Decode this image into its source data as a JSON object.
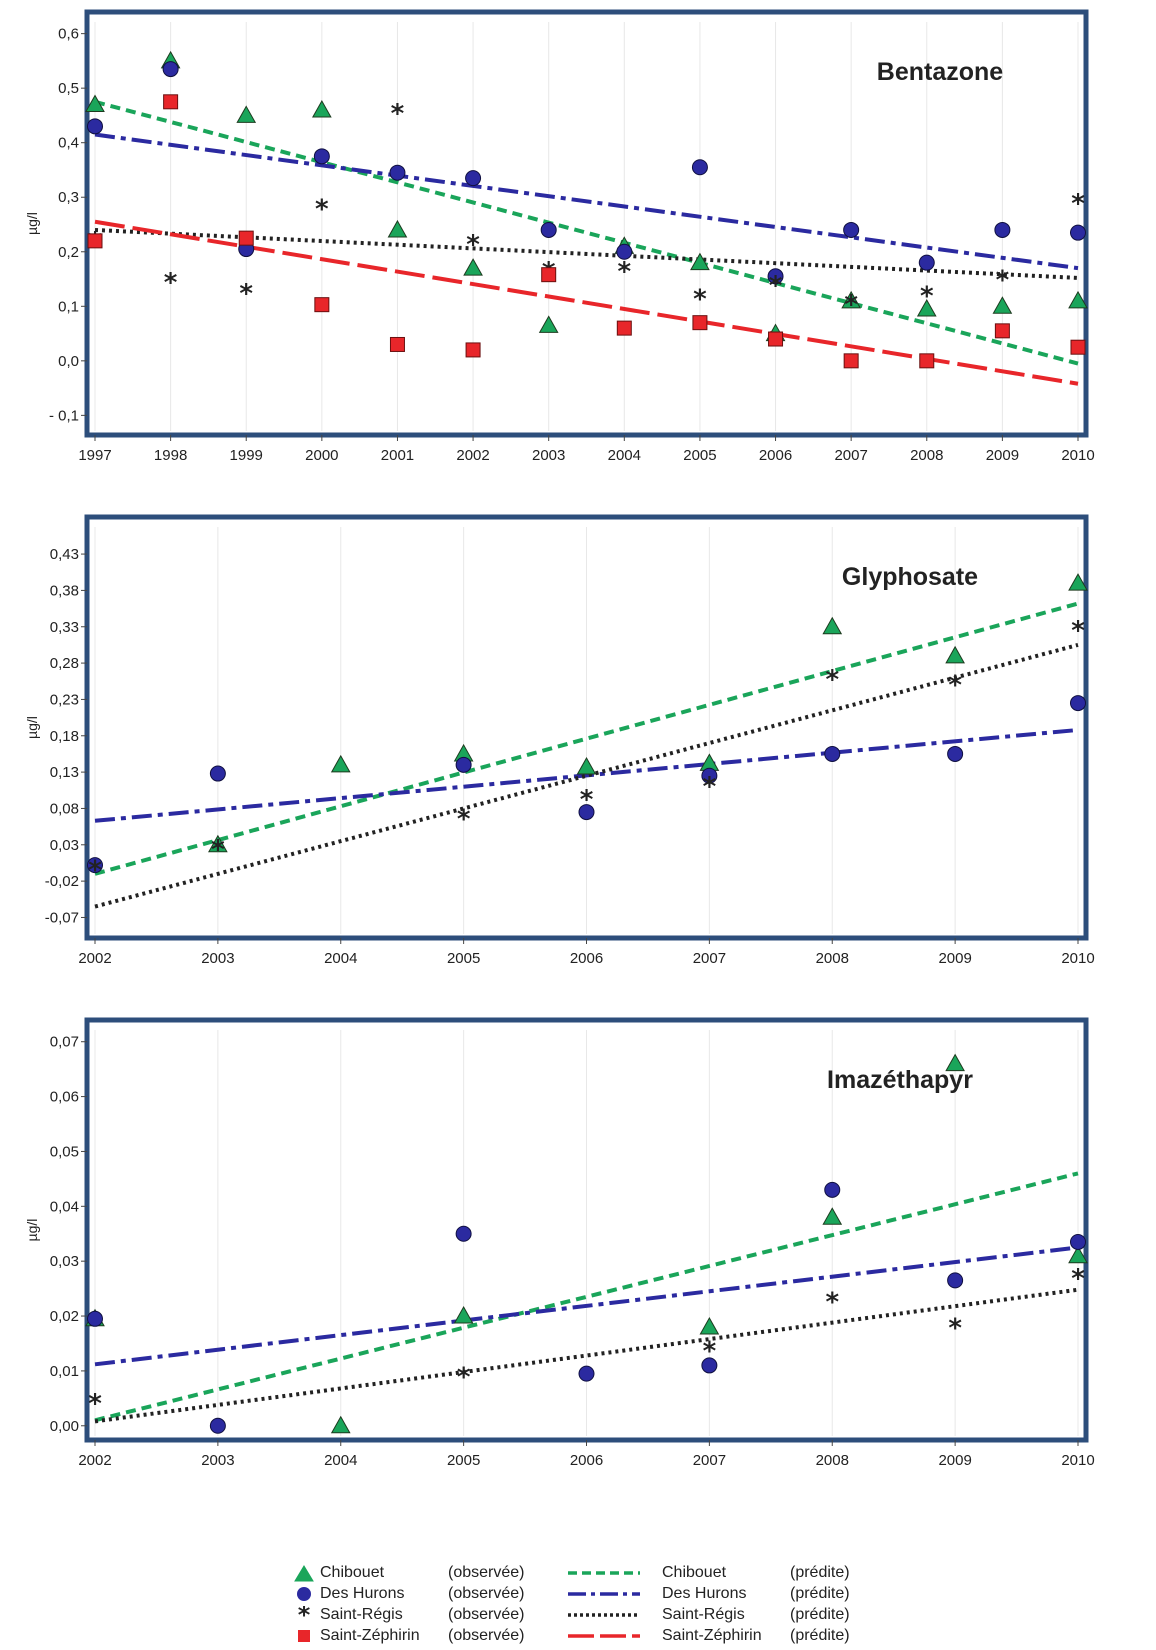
{
  "series_styles": [
    {
      "key": "chibouet",
      "color": "#1aa55a",
      "marker": "triangle",
      "line": "dash"
    },
    {
      "key": "hurons",
      "color": "#2b2aa0",
      "marker": "circle",
      "line": "dashdot"
    },
    {
      "key": "regis",
      "color": "#222222",
      "marker": "asterisk",
      "line": "dot"
    },
    {
      "key": "zephirin",
      "color": "#e8262a",
      "marker": "square",
      "line": "longdash"
    }
  ],
  "legend": {
    "observed": [
      {
        "key": "chibouet",
        "name": "Chibouet",
        "note": "(observée)"
      },
      {
        "key": "hurons",
        "name": "Des Hurons",
        "note": "(observée)"
      },
      {
        "key": "regis",
        "name": "Saint-Régis",
        "note": "(observée)"
      },
      {
        "key": "zephirin",
        "name": "Saint-Zéphirin",
        "note": "(observée)"
      }
    ],
    "predicted": [
      {
        "key": "chibouet",
        "name": "Chibouet",
        "note": "(prédite)"
      },
      {
        "key": "hurons",
        "name": "Des Hurons",
        "note": "(prédite)"
      },
      {
        "key": "regis",
        "name": "Saint-Régis",
        "note": "(prédite)"
      },
      {
        "key": "zephirin",
        "name": "Saint-Zéphirin",
        "note": "(prédite)"
      }
    ]
  },
  "chart_data": [
    {
      "type": "scatter",
      "title": "Bentazone",
      "ylabel": "µg/l",
      "xlim": [
        1997,
        2010
      ],
      "ylim": [
        -0.125,
        0.625
      ],
      "xticks": [
        "1997",
        "1998",
        "1999",
        "2000",
        "2001",
        "2002",
        "2003",
        "2004",
        "2005",
        "2006",
        "2007",
        "2008",
        "2009",
        "2010"
      ],
      "yticks": [
        {
          "v": 0.6,
          "label": "0,6"
        },
        {
          "v": 0.5,
          "label": "0,5"
        },
        {
          "v": 0.4,
          "label": "0,4"
        },
        {
          "v": 0.3,
          "label": "0,3"
        },
        {
          "v": 0.2,
          "label": "0,2"
        },
        {
          "v": 0.1,
          "label": "0,1"
        },
        {
          "v": 0.0,
          "label": "0,0"
        },
        {
          "v": -0.1,
          "label": "- 0,1"
        }
      ],
      "observed": {
        "chibouet": [
          [
            1997,
            0.47
          ],
          [
            1998,
            0.55
          ],
          [
            1999,
            0.45
          ],
          [
            2000,
            0.46
          ],
          [
            2001,
            0.24
          ],
          [
            2002,
            0.17
          ],
          [
            2003,
            0.065
          ],
          [
            2004,
            0.21
          ],
          [
            2005,
            0.18
          ],
          [
            2006,
            0.05
          ],
          [
            2007,
            0.11
          ],
          [
            2008,
            0.095
          ],
          [
            2009,
            0.1
          ],
          [
            2010,
            0.11
          ]
        ],
        "hurons": [
          [
            1997,
            0.43
          ],
          [
            1998,
            0.535
          ],
          [
            1999,
            0.205
          ],
          [
            2000,
            0.375
          ],
          [
            2001,
            0.345
          ],
          [
            2002,
            0.335
          ],
          [
            2003,
            0.24
          ],
          [
            2004,
            0.2
          ],
          [
            2005,
            0.355
          ],
          [
            2006,
            0.155
          ],
          [
            2007,
            0.24
          ],
          [
            2008,
            0.18
          ],
          [
            2009,
            0.24
          ],
          [
            2010,
            0.235
          ]
        ],
        "regis": [
          [
            1997,
            0.225
          ],
          [
            1998,
            0.15
          ],
          [
            1999,
            0.13
          ],
          [
            2000,
            0.285
          ],
          [
            2001,
            0.46
          ],
          [
            2002,
            0.22
          ],
          [
            2003,
            0.17
          ],
          [
            2004,
            0.17
          ],
          [
            2005,
            0.12
          ],
          [
            2006,
            0.145
          ],
          [
            2007,
            0.11
          ],
          [
            2008,
            0.125
          ],
          [
            2009,
            0.155
          ],
          [
            2010,
            0.295
          ]
        ],
        "zephirin": [
          [
            1997,
            0.22
          ],
          [
            1998,
            0.475
          ],
          [
            1999,
            0.225
          ],
          [
            2000,
            0.103
          ],
          [
            2001,
            0.03
          ],
          [
            2002,
            0.02
          ],
          [
            2003,
            0.158
          ],
          [
            2004,
            0.06
          ],
          [
            2005,
            0.07
          ],
          [
            2006,
            0.04
          ],
          [
            2007,
            0.0
          ],
          [
            2008,
            0.0
          ],
          [
            2009,
            0.055
          ],
          [
            2010,
            0.025
          ]
        ]
      },
      "predicted": {
        "chibouet": [
          [
            1997,
            0.475
          ],
          [
            2010,
            -0.005
          ]
        ],
        "hurons": [
          [
            1997,
            0.415
          ],
          [
            2010,
            0.17
          ]
        ],
        "regis": [
          [
            1997,
            0.24
          ],
          [
            2010,
            0.152
          ]
        ],
        "zephirin": [
          [
            1997,
            0.255
          ],
          [
            2010,
            -0.042
          ]
        ]
      }
    },
    {
      "type": "scatter",
      "title": "Glyphosate",
      "ylabel": "µg/l",
      "xlim": [
        2002,
        2010
      ],
      "ylim": [
        -0.09,
        0.47
      ],
      "xticks": [
        "2002",
        "2003",
        "2004",
        "2005",
        "2006",
        "2007",
        "2008",
        "2009",
        "2010"
      ],
      "yticks": [
        {
          "v": 0.43,
          "label": "0,43"
        },
        {
          "v": 0.38,
          "label": "0,38"
        },
        {
          "v": 0.33,
          "label": "0,33"
        },
        {
          "v": 0.28,
          "label": "0,28"
        },
        {
          "v": 0.23,
          "label": "0,23"
        },
        {
          "v": 0.18,
          "label": "0,18"
        },
        {
          "v": 0.13,
          "label": "0,13"
        },
        {
          "v": 0.08,
          "label": "0,08"
        },
        {
          "v": 0.03,
          "label": "0,03"
        },
        {
          "v": -0.02,
          "label": "-0,02"
        },
        {
          "v": -0.07,
          "label": "-0,07"
        }
      ],
      "observed": {
        "chibouet": [
          [
            2003,
            0.03
          ],
          [
            2004,
            0.14
          ],
          [
            2005,
            0.155
          ],
          [
            2006,
            0.137
          ],
          [
            2007,
            0.142
          ],
          [
            2008,
            0.33
          ],
          [
            2009,
            0.29
          ],
          [
            2010,
            0.39
          ]
        ],
        "hurons": [
          [
            2002,
            0.002
          ],
          [
            2003,
            0.128
          ],
          [
            2005,
            0.14
          ],
          [
            2006,
            0.075
          ],
          [
            2007,
            0.125
          ],
          [
            2008,
            0.155
          ],
          [
            2009,
            0.155
          ],
          [
            2010,
            0.225
          ]
        ],
        "regis": [
          [
            2002,
            0.0
          ],
          [
            2003,
            0.028
          ],
          [
            2005,
            0.07
          ],
          [
            2006,
            0.097
          ],
          [
            2007,
            0.115
          ],
          [
            2008,
            0.262
          ],
          [
            2009,
            0.255
          ],
          [
            2010,
            0.33
          ]
        ]
      },
      "predicted": {
        "chibouet": [
          [
            2002,
            -0.01
          ],
          [
            2010,
            0.362
          ]
        ],
        "hurons": [
          [
            2002,
            0.063
          ],
          [
            2010,
            0.188
          ]
        ],
        "regis": [
          [
            2002,
            -0.055
          ],
          [
            2010,
            0.305
          ]
        ]
      }
    },
    {
      "type": "scatter",
      "title": "Imazéthapyr",
      "ylabel": "µg/l",
      "xlim": [
        2002,
        2010
      ],
      "ylim": [
        -0.0015,
        0.0725
      ],
      "xticks": [
        "2002",
        "2003",
        "2004",
        "2005",
        "2006",
        "2007",
        "2008",
        "2009",
        "2010"
      ],
      "yticks": [
        {
          "v": 0.07,
          "label": "0,07"
        },
        {
          "v": 0.06,
          "label": "0,06"
        },
        {
          "v": 0.05,
          "label": "0,05"
        },
        {
          "v": 0.04,
          "label": "0,04"
        },
        {
          "v": 0.03,
          "label": "0,03"
        },
        {
          "v": 0.02,
          "label": "0,02"
        },
        {
          "v": 0.01,
          "label": "0,01"
        },
        {
          "v": 0.0,
          "label": "0,00"
        }
      ],
      "observed": {
        "chibouet": [
          [
            2002,
            0.0195
          ],
          [
            2004,
            0.0
          ],
          [
            2005,
            0.02
          ],
          [
            2007,
            0.018
          ],
          [
            2008,
            0.038
          ],
          [
            2009,
            0.066
          ],
          [
            2010,
            0.031
          ]
        ],
        "hurons": [
          [
            2002,
            0.0195
          ],
          [
            2003,
            0.0
          ],
          [
            2005,
            0.035
          ],
          [
            2006,
            0.0095
          ],
          [
            2007,
            0.011
          ],
          [
            2008,
            0.043
          ],
          [
            2009,
            0.0265
          ],
          [
            2010,
            0.0335
          ]
        ],
        "regis": [
          [
            2002,
            0.0047
          ],
          [
            2005,
            0.0095
          ],
          [
            2007,
            0.0143
          ],
          [
            2008,
            0.0232
          ],
          [
            2009,
            0.0185
          ],
          [
            2010,
            0.0275
          ]
        ]
      },
      "predicted": {
        "chibouet": [
          [
            2002,
            0.001
          ],
          [
            2010,
            0.046
          ]
        ],
        "hurons": [
          [
            2002,
            0.0112
          ],
          [
            2010,
            0.0325
          ]
        ],
        "regis": [
          [
            2002,
            0.0008
          ],
          [
            2010,
            0.0248
          ]
        ]
      }
    }
  ]
}
